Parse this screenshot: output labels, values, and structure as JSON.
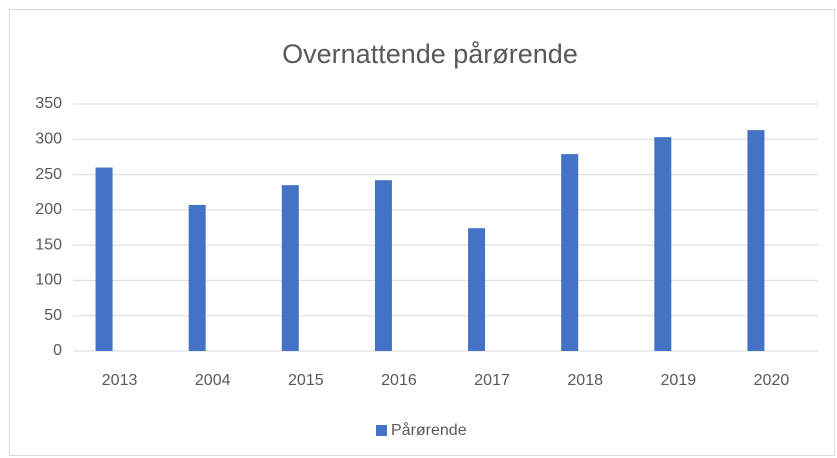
{
  "chart_data": {
    "type": "bar",
    "title": "Overnattende pårørende",
    "categories": [
      "2013",
      "2004",
      "2015",
      "2016",
      "2017",
      "2018",
      "2019",
      "2020"
    ],
    "series": [
      {
        "name": "Pårørende",
        "color": "#4472c4",
        "values": [
          260,
          207,
          235,
          242,
          174,
          279,
          303,
          313
        ]
      }
    ],
    "ylim": [
      0,
      350
    ],
    "yticks": [
      0,
      50,
      100,
      150,
      200,
      250,
      300,
      350
    ],
    "grid": true,
    "legend": "bottom"
  }
}
